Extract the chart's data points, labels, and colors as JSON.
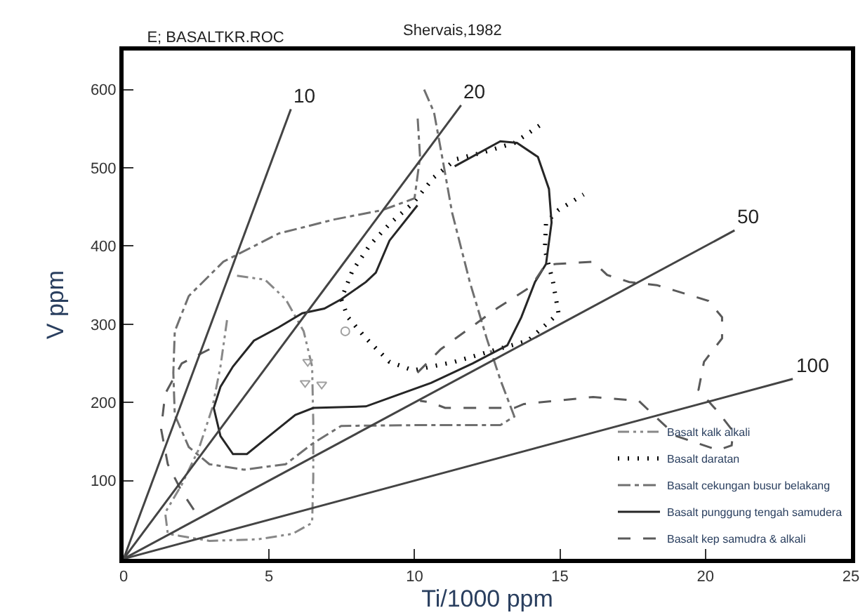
{
  "chart_data": {
    "type": "line",
    "title": "E; BASALTKR.ROC",
    "xlabel": "Ti/1000 ppm",
    "ylabel": "V ppm",
    "annotations": [
      "Shervais,1982"
    ],
    "xlim": [
      0,
      25
    ],
    "ylim": [
      0,
      650
    ],
    "xticks": [
      0,
      5,
      10,
      15,
      20,
      25
    ],
    "yticks": [
      100,
      200,
      300,
      400,
      500,
      600
    ],
    "legend": "bottom right",
    "series": [
      {
        "name": "Basalt kalk alkali",
        "color": "#888888",
        "line_style": "dashdotdot",
        "x": [
          3.9,
          4.86,
          5.57,
          6.19,
          6.48,
          6.52,
          6.52,
          6.48,
          5.81,
          4.62,
          2.95,
          1.52,
          1.43,
          2.0,
          2.57,
          3.05,
          3.33,
          3.57
        ],
        "values": [
          362,
          357,
          332,
          291,
          246,
          175,
          104,
          46,
          32,
          25,
          23,
          32,
          59,
          95,
          139,
          193,
          246,
          309
        ]
      },
      {
        "name": "Basalt daratan",
        "color": "#000000",
        "line_style": "dotted",
        "x": [
          14.29,
          13.43,
          12.38,
          11.43,
          10.67,
          9.95,
          9.19,
          8.48,
          7.86,
          7.48,
          7.71,
          8.33,
          9.14,
          9.95,
          11.38,
          12.48,
          13.9,
          14.95,
          14.76,
          14.48,
          14.52,
          14.95,
          15.81
        ],
        "values": [
          554,
          532,
          520,
          511,
          488,
          455,
          430,
          402,
          368,
          332,
          309,
          282,
          252,
          241,
          252,
          264,
          279,
          314,
          354,
          395,
          430,
          446,
          466
        ]
      },
      {
        "name": "Basalt cekungan busur belakang",
        "color": "#707070",
        "line_style": "dashdot",
        "x": [
          10.33,
          10.67,
          10.95,
          11.29,
          11.9,
          12.48,
          12.95,
          13.43,
          12.95,
          10.1,
          7.48,
          6.52,
          5.57,
          4.14,
          2.95,
          2.24,
          1.76,
          1.71,
          1.76,
          2.24,
          3.43,
          5.33,
          7.24,
          8.9,
          10.0,
          10.19,
          10.1
        ],
        "values": [
          600,
          571,
          514,
          443,
          354,
          282,
          229,
          182,
          171,
          171,
          170,
          148,
          121,
          114,
          121,
          143,
          184,
          238,
          291,
          336,
          380,
          416,
          434,
          446,
          461,
          514,
          568
        ]
      },
      {
        "name": "Basalt punggung tengah samudera",
        "color": "#262626",
        "line_style": "solid",
        "x": [
          11.38,
          12.95,
          13.52,
          14.24,
          14.62,
          14.71,
          14.52,
          14.14,
          13.67,
          13.19,
          12.0,
          10.57,
          9.38,
          8.33,
          6.52,
          5.9,
          5.0,
          4.24,
          3.76,
          3.33,
          3.1,
          3.33,
          3.76,
          4.48,
          5.33,
          6.14,
          6.9,
          7.48,
          8.33,
          8.67,
          9.14,
          10.1
        ],
        "values": [
          502,
          534,
          532,
          514,
          473,
          430,
          377,
          354,
          309,
          273,
          250,
          225,
          209,
          195,
          193,
          184,
          157,
          134,
          134,
          157,
          193,
          220,
          246,
          279,
          296,
          314,
          320,
          332,
          354,
          366,
          407,
          452
        ]
      },
      {
        "name": "Basalt kep samudra & alkali",
        "color": "#5a5a5a",
        "line_style": "dashed",
        "x": [
          10.1,
          10.9,
          12.86,
          14.0,
          14.48,
          14.86,
          16.14,
          16.62,
          17.38,
          18.33,
          20.1,
          20.57,
          20.57,
          19.95,
          19.76,
          20.43,
          20.95,
          20.9,
          20.43,
          19.0,
          18.33,
          17.71,
          16.14,
          13.76,
          13.43,
          11.05,
          10.57,
          10.19,
          null,
          2.95,
          2.0,
          1.43,
          1.29,
          1.52,
          2.0,
          2.48
        ],
        "values": [
          238,
          268,
          321,
          348,
          375,
          377,
          380,
          363,
          354,
          350,
          330,
          309,
          282,
          252,
          216,
          188,
          163,
          145,
          139,
          157,
          180,
          202,
          207,
          198,
          193,
          193,
          200,
          202,
          null,
          268,
          250,
          211,
          166,
          121,
          86,
          59
        ]
      },
      {
        "name": "10",
        "color": "#444444",
        "line_style": "solid",
        "x": [
          0,
          5.75
        ],
        "values": [
          0,
          575
        ]
      },
      {
        "name": "20",
        "color": "#444444",
        "line_style": "solid",
        "x": [
          0,
          11.6
        ],
        "values": [
          0,
          580
        ]
      },
      {
        "name": "50",
        "color": "#444444",
        "line_style": "solid",
        "x": [
          0,
          21
        ],
        "values": [
          0,
          420
        ]
      },
      {
        "name": "100",
        "color": "#444444",
        "line_style": "solid",
        "x": [
          0,
          23
        ],
        "values": [
          0,
          230
        ]
      },
      {
        "type": "scatter",
        "color": "#a0a0a0",
        "marker": "triangle",
        "x": [
          6.33,
          6.24,
          6.81
        ],
        "values": [
          252,
          225,
          223
        ]
      },
      {
        "type": "scatter",
        "color": "#a0a0a0",
        "marker": "circle",
        "x": [
          7.62
        ],
        "values": [
          291
        ]
      }
    ]
  }
}
